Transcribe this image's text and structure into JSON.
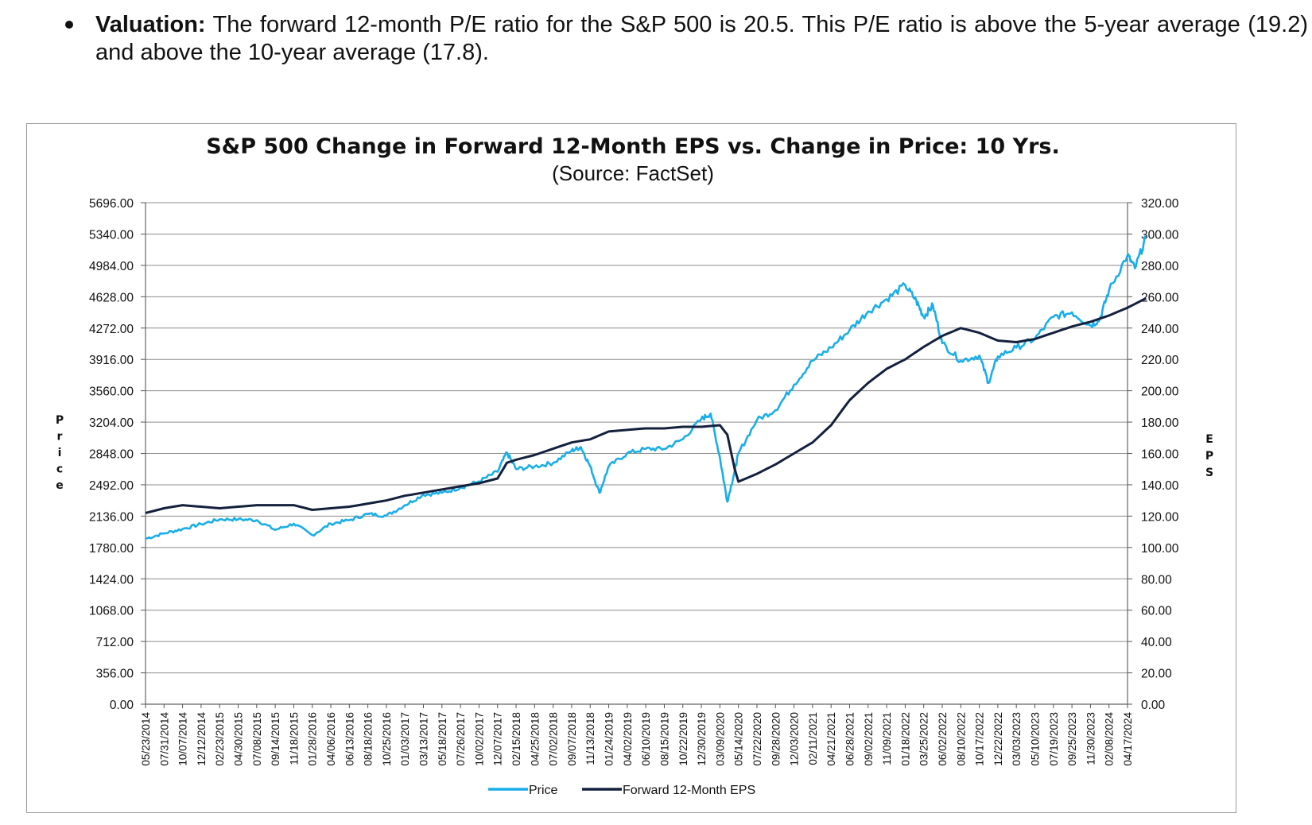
{
  "bullet": {
    "label": "Valuation:",
    "text": " The forward 12-month P/E ratio for the S&P 500 is 20.5. This P/E ratio is above the 5-year average (19.2) and above the 10-year average (17.8)."
  },
  "chart_data": {
    "type": "line",
    "title": "S&P 500 Change in Forward 12-Month EPS vs. Change in Price: 10 Yrs.",
    "subtitle": "(Source: FactSet)",
    "ylabel": "Price",
    "y2label": "EPS",
    "ylim": [
      0,
      5696
    ],
    "y2lim": [
      0,
      320
    ],
    "y_ticks": [
      "0.00",
      "356.00",
      "712.00",
      "1068.00",
      "1424.00",
      "1780.00",
      "2136.00",
      "2492.00",
      "2848.00",
      "3204.00",
      "3560.00",
      "3916.00",
      "4272.00",
      "4628.00",
      "4984.00",
      "5340.00",
      "5696.00"
    ],
    "y2_ticks": [
      "0.00",
      "20.00",
      "40.00",
      "60.00",
      "80.00",
      "100.00",
      "120.00",
      "140.00",
      "160.00",
      "180.00",
      "200.00",
      "220.00",
      "240.00",
      "260.00",
      "280.00",
      "300.00",
      "320.00"
    ],
    "x_ticks": [
      "05/23/2014",
      "07/31/2014",
      "10/07/2014",
      "12/12/2014",
      "02/23/2015",
      "04/30/2015",
      "07/08/2015",
      "09/14/2015",
      "11/18/2015",
      "01/28/2016",
      "04/06/2016",
      "06/13/2016",
      "08/18/2016",
      "10/25/2016",
      "01/03/2017",
      "03/13/2017",
      "05/18/2017",
      "07/26/2017",
      "10/02/2017",
      "12/07/2017",
      "02/15/2018",
      "04/25/2018",
      "07/02/2018",
      "09/07/2018",
      "11/13/2018",
      "01/24/2019",
      "04/02/2019",
      "06/10/2019",
      "08/15/2019",
      "10/22/2019",
      "12/30/2019",
      "03/09/2020",
      "05/14/2020",
      "07/22/2020",
      "09/28/2020",
      "12/03/2020",
      "02/11/2021",
      "04/21/2021",
      "06/28/2021",
      "09/02/2021",
      "11/09/2021",
      "01/18/2022",
      "03/25/2022",
      "06/02/2022",
      "08/10/2022",
      "10/17/2022",
      "12/22/2022",
      "03/03/2023",
      "05/10/2023",
      "07/19/2023",
      "09/25/2023",
      "11/30/2023",
      "02/08/2024",
      "04/17/2024"
    ],
    "legend": "bottom",
    "grid": true,
    "series": [
      {
        "name": "Price",
        "axis": "left",
        "color": "#1aaee8",
        "points": [
          [
            0,
            1880
          ],
          [
            1,
            1940
          ],
          [
            2,
            1990
          ],
          [
            3,
            2045
          ],
          [
            4,
            2100
          ],
          [
            5,
            2100
          ],
          [
            6,
            2090
          ],
          [
            7,
            1980
          ],
          [
            8,
            2050
          ],
          [
            9,
            1920
          ],
          [
            10,
            2050
          ],
          [
            11,
            2090
          ],
          [
            12,
            2160
          ],
          [
            13,
            2140
          ],
          [
            14,
            2260
          ],
          [
            15,
            2380
          ],
          [
            16,
            2400
          ],
          [
            17,
            2460
          ],
          [
            18,
            2530
          ],
          [
            19,
            2640
          ],
          [
            19.5,
            2860
          ],
          [
            20,
            2670
          ],
          [
            21,
            2700
          ],
          [
            22,
            2740
          ],
          [
            23,
            2880
          ],
          [
            23.5,
            2920
          ],
          [
            24,
            2700
          ],
          [
            24.5,
            2400
          ],
          [
            25,
            2700
          ],
          [
            26,
            2850
          ],
          [
            27,
            2900
          ],
          [
            28,
            2900
          ],
          [
            29,
            3010
          ],
          [
            30,
            3240
          ],
          [
            30.5,
            3300
          ],
          [
            31,
            2800
          ],
          [
            31.4,
            2300
          ],
          [
            31.8,
            2650
          ],
          [
            32,
            2850
          ],
          [
            33,
            3230
          ],
          [
            34,
            3340
          ],
          [
            35,
            3630
          ],
          [
            36,
            3900
          ],
          [
            37,
            4050
          ],
          [
            38,
            4250
          ],
          [
            39,
            4460
          ],
          [
            40,
            4600
          ],
          [
            41,
            4760
          ],
          [
            41.6,
            4580
          ],
          [
            42,
            4400
          ],
          [
            42.5,
            4530
          ],
          [
            43,
            4100
          ],
          [
            44,
            3900
          ],
          [
            45,
            3960
          ],
          [
            45.5,
            3650
          ],
          [
            46,
            3950
          ],
          [
            47,
            4050
          ],
          [
            48,
            4150
          ],
          [
            49,
            4400
          ],
          [
            50,
            4450
          ],
          [
            51,
            4300
          ],
          [
            51.5,
            4370
          ],
          [
            52,
            4700
          ],
          [
            53,
            5100
          ],
          [
            53.4,
            4950
          ],
          [
            54,
            5300
          ]
        ]
      },
      {
        "name": "Forward 12-Month EPS",
        "axis": "right",
        "color": "#14213d",
        "points": [
          [
            0,
            122
          ],
          [
            1,
            125
          ],
          [
            2,
            127
          ],
          [
            3,
            126
          ],
          [
            4,
            125
          ],
          [
            5,
            126
          ],
          [
            6,
            127
          ],
          [
            7,
            127
          ],
          [
            8,
            127
          ],
          [
            9,
            124
          ],
          [
            10,
            125
          ],
          [
            11,
            126
          ],
          [
            12,
            128
          ],
          [
            13,
            130
          ],
          [
            14,
            133
          ],
          [
            15,
            135
          ],
          [
            16,
            137
          ],
          [
            17,
            139
          ],
          [
            18,
            141
          ],
          [
            19,
            144
          ],
          [
            19.5,
            154
          ],
          [
            20,
            156
          ],
          [
            21,
            159
          ],
          [
            22,
            163
          ],
          [
            23,
            167
          ],
          [
            24,
            169
          ],
          [
            25,
            174
          ],
          [
            26,
            175
          ],
          [
            27,
            176
          ],
          [
            28,
            176
          ],
          [
            29,
            177
          ],
          [
            30,
            177
          ],
          [
            31,
            178
          ],
          [
            31.4,
            172
          ],
          [
            31.8,
            150
          ],
          [
            32,
            142
          ],
          [
            33,
            147
          ],
          [
            34,
            153
          ],
          [
            35,
            160
          ],
          [
            36,
            167
          ],
          [
            37,
            178
          ],
          [
            38,
            194
          ],
          [
            39,
            205
          ],
          [
            40,
            214
          ],
          [
            41,
            220
          ],
          [
            42,
            228
          ],
          [
            43,
            235
          ],
          [
            44,
            240
          ],
          [
            45,
            237
          ],
          [
            46,
            232
          ],
          [
            47,
            231
          ],
          [
            48,
            233
          ],
          [
            49,
            237
          ],
          [
            50,
            241
          ],
          [
            51,
            244
          ],
          [
            52,
            248
          ],
          [
            53,
            253
          ],
          [
            54,
            259
          ]
        ]
      }
    ]
  }
}
